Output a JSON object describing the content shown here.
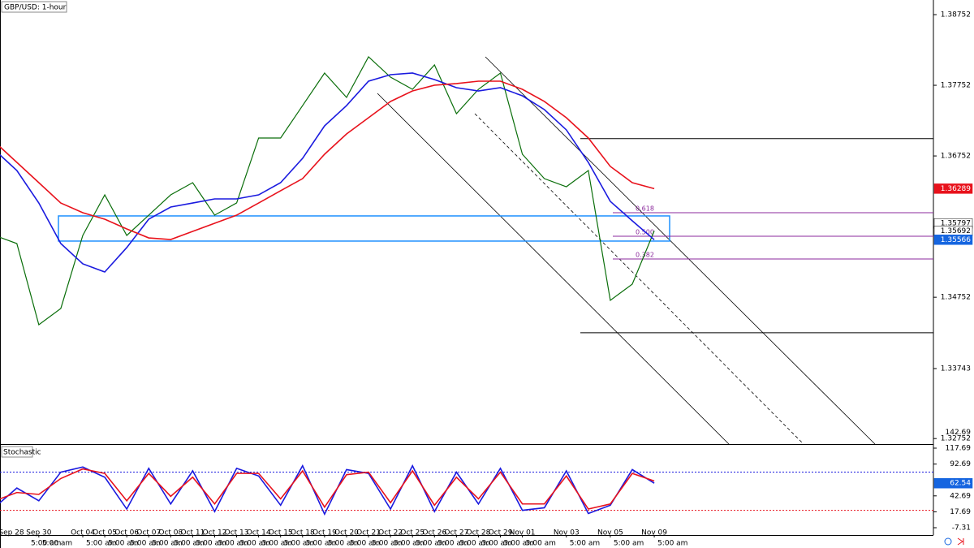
{
  "chart_data": [
    {
      "type": "line",
      "title": "GBP/USD: 1-hour",
      "categories": [
        "Sep 28",
        null,
        "Sep 30",
        null,
        "Oct 04",
        "Oct 05",
        "Oct 06",
        "Oct 07",
        "Oct 08",
        "Oct 11",
        "Oct 12",
        "Oct 13",
        "Oct 14",
        "Oct 15",
        "Oct 18",
        "Oct 19",
        "Oct 20",
        "Oct 21",
        "Oct 22",
        "Oct 25",
        "Oct 26",
        "Oct 27",
        "Oct 28",
        "Oct 29",
        "Nov 01",
        null,
        "Nov 03",
        null,
        "Nov 05",
        null,
        "Nov 09"
      ],
      "session_label": "5:00 am",
      "ylim": [
        1.32674,
        1.38959
      ],
      "yticks": [
        1.38752,
        1.37752,
        1.36752,
        1.34752,
        1.33743,
        1.32752
      ],
      "series": [
        {
          "color": "#0a6e0a",
          "values": [
            1.35627,
            1.35512,
            1.34363,
            1.34593,
            1.35627,
            1.36201,
            1.35627,
            1.35914,
            1.36201,
            1.36374,
            1.35914,
            1.36087,
            1.37006,
            1.37006,
            1.37465,
            1.37925,
            1.3758,
            1.38155,
            1.37867,
            1.37695,
            1.3804,
            1.3735,
            1.37695,
            1.37925,
            1.36776,
            1.36431,
            1.36316,
            1.36546,
            1.34708,
            1.34938,
            1.35692
          ]
        },
        {
          "color": "#1a1adf",
          "values": [
            1.36833,
            1.36546,
            1.36086,
            1.35512,
            1.35225,
            1.3511,
            1.35455,
            1.35857,
            1.36029,
            1.36086,
            1.36144,
            1.36144,
            1.36201,
            1.36374,
            1.36718,
            1.37178,
            1.37465,
            1.3781,
            1.37902,
            1.37925,
            1.37833,
            1.37718,
            1.37672,
            1.37718,
            1.37603,
            1.37408,
            1.37121,
            1.36661,
            1.36109,
            1.35834,
            1.35566
          ]
        },
        {
          "color": "#e8121c",
          "values": [
            1.36948,
            1.36661,
            1.36374,
            1.36086,
            1.35949,
            1.35857,
            1.35719,
            1.35592,
            1.35569,
            1.35684,
            1.35799,
            1.35914,
            1.36086,
            1.36259,
            1.36431,
            1.36776,
            1.37063,
            1.37293,
            1.37523,
            1.37672,
            1.37753,
            1.37776,
            1.3781,
            1.3781,
            1.37695,
            1.37523,
            1.37293,
            1.37006,
            1.36604,
            1.36374,
            1.36289
          ]
        }
      ],
      "markers": [
        {
          "value": 1.36289,
          "color": "#e8121c"
        },
        {
          "value": 1.35797,
          "color": "#ffffff"
        },
        {
          "value": 1.35692,
          "color": "#ffffff"
        },
        {
          "value": 1.35566,
          "color": "#1565e0"
        }
      ],
      "fib_levels": [
        {
          "value": 1.35949,
          "label": "0.618"
        },
        {
          "value": 1.35615,
          "label": "0.500"
        },
        {
          "value": 1.35294,
          "label": "0.382"
        }
      ],
      "levels": [
        1.36997,
        1.3425
      ],
      "zone": [
        1.35903,
        1.35547
      ]
    },
    {
      "type": "line",
      "title": "Stochastic",
      "ylim": [
        -7.31,
        117.69
      ],
      "yticks": [
        142.69,
        117.69,
        92.69,
        42.69,
        17.69,
        -7.31
      ],
      "levels": [
        {
          "value": 80,
          "color": "#1a1adf"
        },
        {
          "value": 20,
          "color": "#e8121c"
        }
      ],
      "series": [
        {
          "color": "#1a1adf",
          "values": [
            25,
            55,
            35,
            80,
            88,
            72,
            22,
            86,
            30,
            82,
            18,
            86,
            74,
            28,
            90,
            14,
            84,
            78,
            22,
            90,
            18,
            80,
            30,
            86,
            20,
            24,
            82,
            15,
            28,
            84,
            62.54
          ]
        },
        {
          "color": "#e8121c",
          "values": [
            35,
            48,
            45,
            70,
            85,
            78,
            35,
            78,
            42,
            72,
            30,
            78,
            78,
            38,
            82,
            25,
            76,
            80,
            32,
            82,
            28,
            72,
            38,
            80,
            30,
            30,
            74,
            22,
            30,
            78,
            66
          ]
        }
      ],
      "markers": [
        {
          "value": 62.54,
          "color": "#1565e0"
        }
      ]
    }
  ]
}
